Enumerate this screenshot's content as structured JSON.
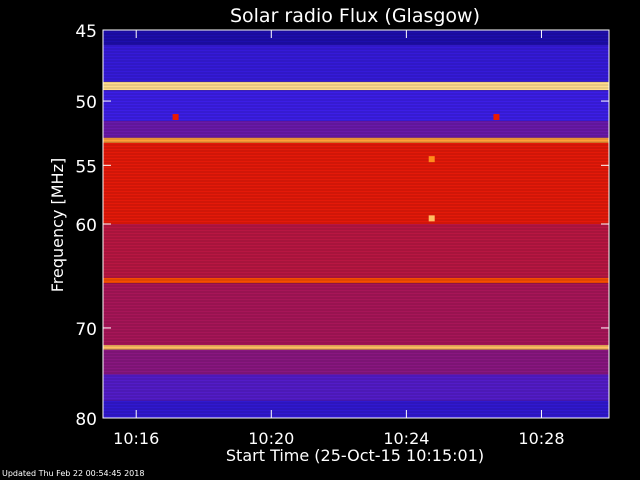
{
  "footer": "Updated Thu Feb 22 00:54:45 2018",
  "colors": {
    "background": "#000000",
    "axis": "#ffffff",
    "text": "#ffffff"
  },
  "chart_data": {
    "type": "heatmap",
    "title": "Solar radio Flux (Glasgow)",
    "xlabel": "Start Time (25-Oct-15 10:15:01)",
    "ylabel": "Frequency [MHz]",
    "y_scale": "log",
    "xlim": [
      "10:15:01",
      "10:30:00"
    ],
    "ylim": [
      45,
      80
    ],
    "x_ticks": [
      "10:16",
      "10:20",
      "10:24",
      "10:28"
    ],
    "y_ticks": [
      45,
      50,
      55,
      60,
      70,
      80
    ],
    "colormap": "blue-red-yellow (low to high intensity)",
    "bands": [
      {
        "from": 45.0,
        "to": 46.0,
        "level": 0.12
      },
      {
        "from": 46.0,
        "to": 48.6,
        "level": 0.22
      },
      {
        "from": 48.6,
        "to": 49.2,
        "level": 0.98
      },
      {
        "from": 49.2,
        "to": 51.5,
        "level": 0.25
      },
      {
        "from": 51.5,
        "to": 52.8,
        "level": 0.35
      },
      {
        "from": 52.8,
        "to": 53.2,
        "level": 0.92
      },
      {
        "from": 53.2,
        "to": 60.0,
        "level": 0.68
      },
      {
        "from": 60.0,
        "to": 65.0,
        "level": 0.55
      },
      {
        "from": 65.0,
        "to": 65.5,
        "level": 0.8
      },
      {
        "from": 65.5,
        "to": 71.8,
        "level": 0.5
      },
      {
        "from": 71.8,
        "to": 72.3,
        "level": 0.95
      },
      {
        "from": 72.3,
        "to": 75.0,
        "level": 0.42
      },
      {
        "from": 75.0,
        "to": 78.0,
        "level": 0.3
      },
      {
        "from": 78.0,
        "to": 80.0,
        "level": 0.2
      }
    ],
    "bursts": [
      {
        "time": "10:24:45",
        "freq": 54.5,
        "level": 0.9
      },
      {
        "time": "10:24:45",
        "freq": 59.5,
        "level": 0.95
      },
      {
        "time": "10:17:10",
        "freq": 51.2,
        "level": 0.7
      },
      {
        "time": "10:26:40",
        "freq": 51.2,
        "level": 0.7
      }
    ]
  }
}
